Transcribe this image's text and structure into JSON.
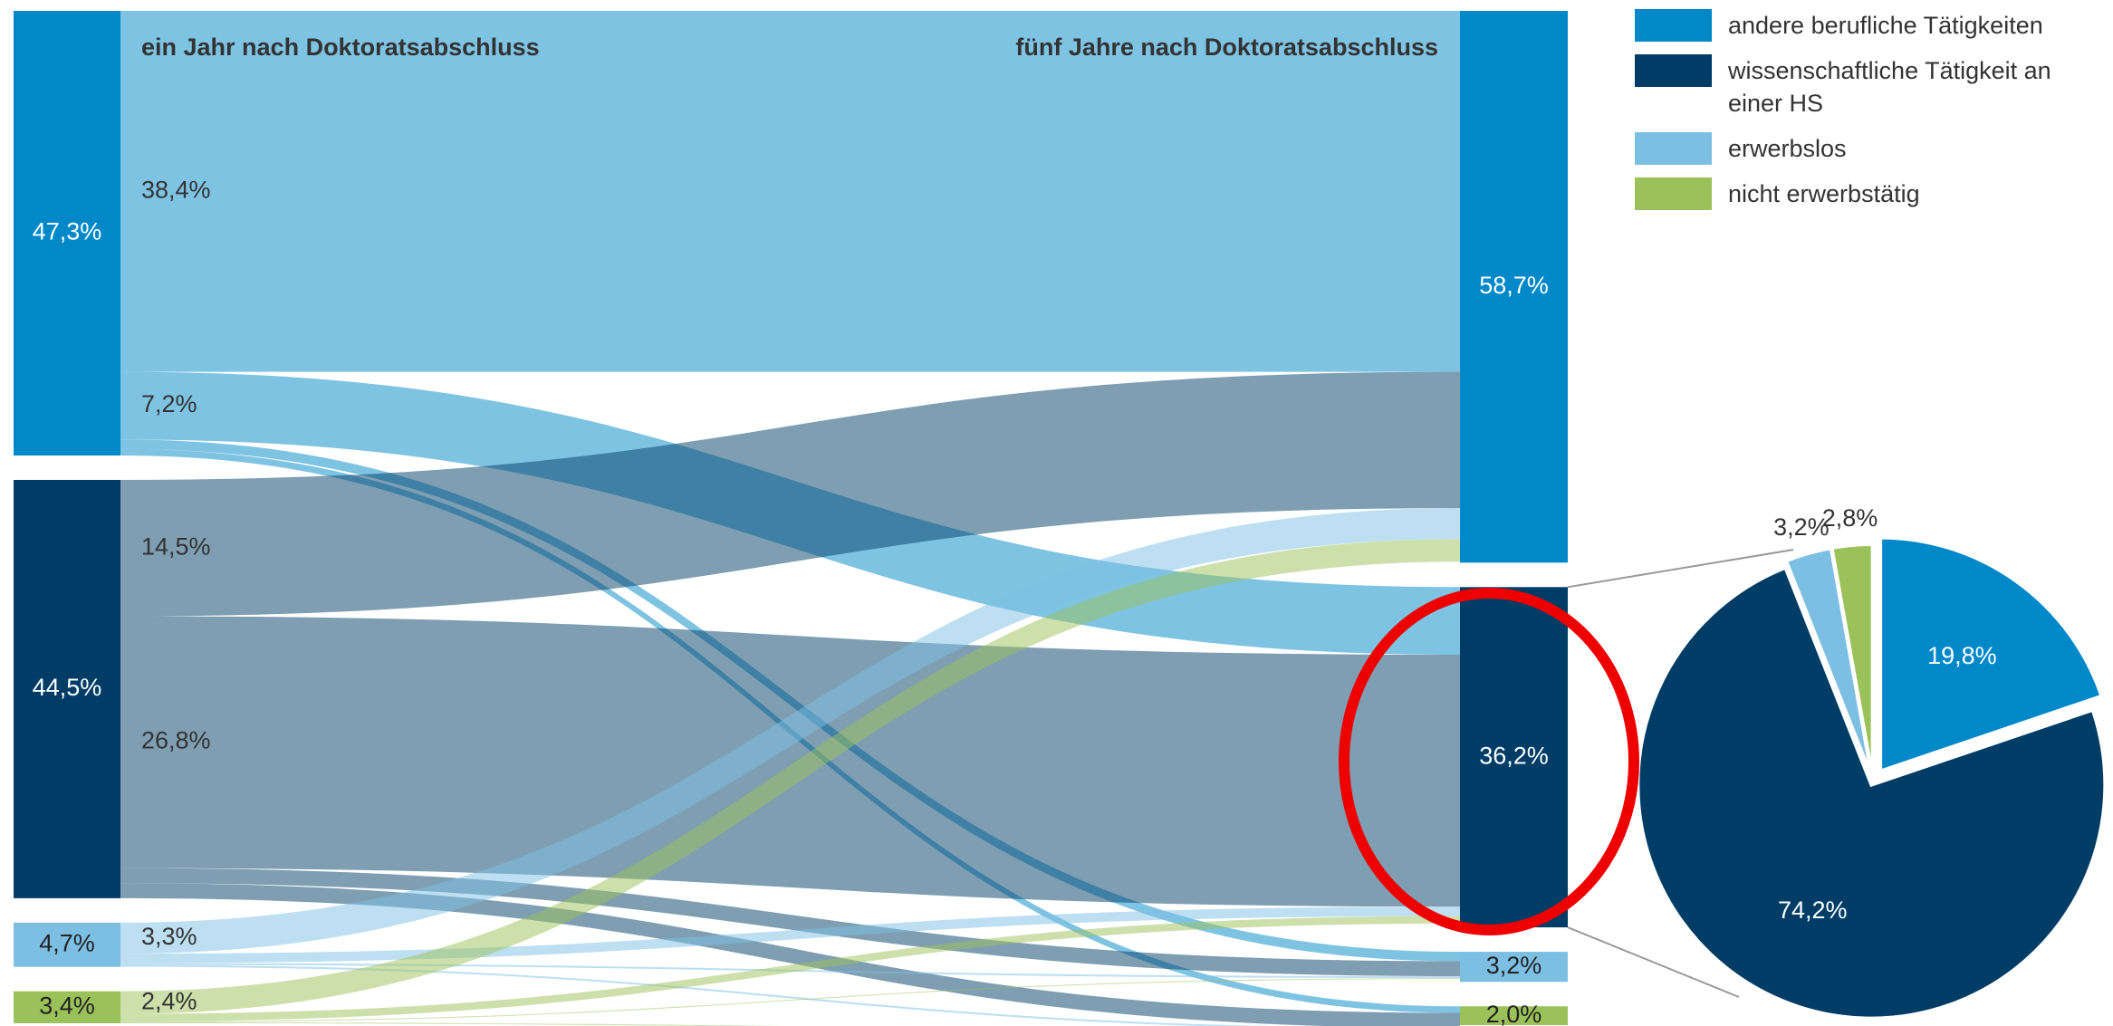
{
  "chart_data": [
    {
      "type": "sankey",
      "left_title": "ein Jahr nach Doktoratsabschluss",
      "right_title": "fünf Jahre nach Doktoratsabschluss",
      "series": [
        {
          "name": "andere berufliche Tätigkeiten",
          "color": "#0088c8"
        },
        {
          "name": "wissenschaftliche Tätigkeit an einer HS",
          "color": "#003d66"
        },
        {
          "name": "erwerbslos",
          "color": "#7dbfe3"
        },
        {
          "name": "nicht erwerbstätig",
          "color": "#9bc15a"
        }
      ],
      "left_values": [
        47.3,
        44.5,
        4.7,
        3.4
      ],
      "left_labels": [
        "47,3%",
        "44,5%",
        "4,7%",
        "3,4%"
      ],
      "right_values": [
        58.7,
        36.2,
        3.2,
        2.0
      ],
      "right_labels": [
        "58,7%",
        "36,2%",
        "3,2%",
        "2,0%"
      ],
      "flows": [
        {
          "source": 0,
          "target": 0,
          "value": 38.4,
          "label": "38,4%"
        },
        {
          "source": 0,
          "target": 1,
          "value": 7.2,
          "label": "7,2%"
        },
        {
          "source": 0,
          "target": 2,
          "value": 1.0
        },
        {
          "source": 0,
          "target": 3,
          "value": 0.7
        },
        {
          "source": 1,
          "target": 0,
          "value": 14.5,
          "label": "14,5%"
        },
        {
          "source": 1,
          "target": 1,
          "value": 26.8,
          "label": "26,8%"
        },
        {
          "source": 1,
          "target": 2,
          "value": 1.6
        },
        {
          "source": 1,
          "target": 3,
          "value": 1.6
        },
        {
          "source": 2,
          "target": 0,
          "value": 3.3,
          "label": "3,3%"
        },
        {
          "source": 2,
          "target": 1,
          "value": 1.0
        },
        {
          "source": 2,
          "target": 2,
          "value": 0.2
        },
        {
          "source": 2,
          "target": 3,
          "value": 0.2
        },
        {
          "source": 3,
          "target": 0,
          "value": 2.4,
          "label": "2,4%"
        },
        {
          "source": 3,
          "target": 1,
          "value": 0.8
        },
        {
          "source": 3,
          "target": 2,
          "value": 0.1
        },
        {
          "source": 3,
          "target": 3,
          "value": 0.1
        }
      ]
    },
    {
      "type": "pie",
      "values": [
        19.8,
        74.2,
        3.2,
        2.8
      ],
      "value_labels": [
        "19,8%",
        "74,2%",
        "3,2%",
        "2,8%"
      ],
      "colors": [
        "#0088c8",
        "#003d66",
        "#7dbfe3",
        "#9bc15a"
      ]
    }
  ]
}
